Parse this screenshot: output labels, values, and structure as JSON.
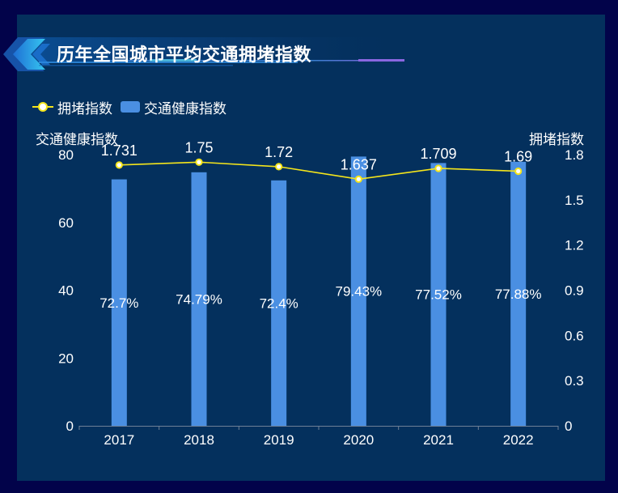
{
  "title": "历年全国城市平均交通拥堵指数",
  "legend": [
    {
      "name": "拥堵指数",
      "type": "line",
      "icon": "line-circle-icon"
    },
    {
      "name": "交通健康指数",
      "type": "bar",
      "icon": "rounded-rect-icon"
    }
  ],
  "colors": {
    "background": "#02034a",
    "panel": "#04305d",
    "bar": "#4a8fe2",
    "line": "#f5e51b",
    "point_fill": "#ffffff",
    "text": "#ffffff",
    "axis": "#6e7f96"
  },
  "chart_data": {
    "type": "bar",
    "title": "历年全国城市平均交通拥堵指数",
    "categories": [
      "2017",
      "2018",
      "2019",
      "2020",
      "2021",
      "2022"
    ],
    "series": [
      {
        "name": "交通健康指数",
        "type": "bar",
        "axis": "left",
        "values": [
          72.7,
          74.79,
          72.4,
          79.43,
          77.52,
          77.88
        ],
        "labels": [
          "72.7%",
          "74.79%",
          "72.4%",
          "79.43%",
          "77.52%",
          "77.88%"
        ]
      },
      {
        "name": "拥堵指数",
        "type": "line",
        "axis": "right",
        "values": [
          1.731,
          1.75,
          1.72,
          1.637,
          1.709,
          1.69
        ],
        "labels": [
          "1.731",
          "1.75",
          "1.72",
          "1.637",
          "1.709",
          "1.69"
        ]
      }
    ],
    "y_left": {
      "label": "交通健康指数",
      "range": [
        0,
        80
      ],
      "ticks": [
        "0",
        "20",
        "40",
        "60",
        "80"
      ]
    },
    "y_right": {
      "label": "拥堵指数",
      "range": [
        0,
        1.8
      ],
      "ticks": [
        "0",
        "0.3",
        "0.6",
        "0.9",
        "1.2",
        "1.5",
        "1.8"
      ]
    },
    "xlabel": "",
    "grid": false,
    "legend_position": "top-left"
  }
}
